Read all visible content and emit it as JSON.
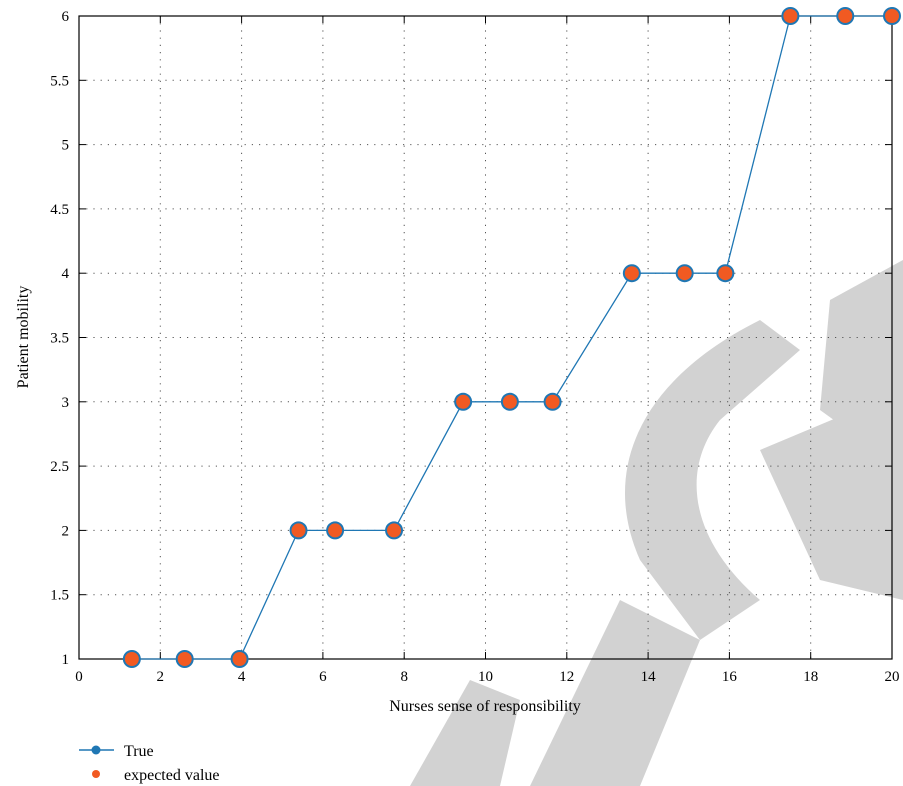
{
  "chart_data": {
    "type": "line",
    "title": "",
    "xlabel": "Nurses sense of responsibility",
    "ylabel": "Patient mobility",
    "xlim": [
      0,
      20
    ],
    "ylim": [
      1,
      6
    ],
    "xticks": [
      0,
      2,
      4,
      6,
      8,
      10,
      12,
      14,
      16,
      18,
      20
    ],
    "yticks": [
      1,
      1.5,
      2,
      2.5,
      3,
      3.5,
      4,
      4.5,
      5,
      5.5,
      6
    ],
    "grid": true,
    "grid_style": "dotted",
    "legend_placement": "below-left",
    "series": [
      {
        "name": "True",
        "style": "line-with-circle-markers",
        "color": "#1f77b4",
        "x": [
          1.3,
          2.6,
          3.95,
          5.4,
          6.3,
          7.75,
          9.45,
          10.6,
          11.65,
          13.6,
          14.9,
          15.9,
          17.5,
          18.85,
          20
        ],
        "y": [
          1,
          1,
          1,
          2,
          2,
          2,
          3,
          3,
          3,
          4,
          4,
          4,
          6,
          6,
          6
        ]
      },
      {
        "name": "expected value",
        "style": "markers",
        "color": "#f15a22",
        "x": [
          1.3,
          2.6,
          3.95,
          5.4,
          6.3,
          7.75,
          9.45,
          10.6,
          11.65,
          13.6,
          14.9,
          15.9,
          17.5,
          18.85,
          20
        ],
        "y": [
          1,
          1,
          1,
          2,
          2,
          2,
          3,
          3,
          3,
          4,
          4,
          4,
          6,
          6,
          6
        ]
      }
    ]
  }
}
